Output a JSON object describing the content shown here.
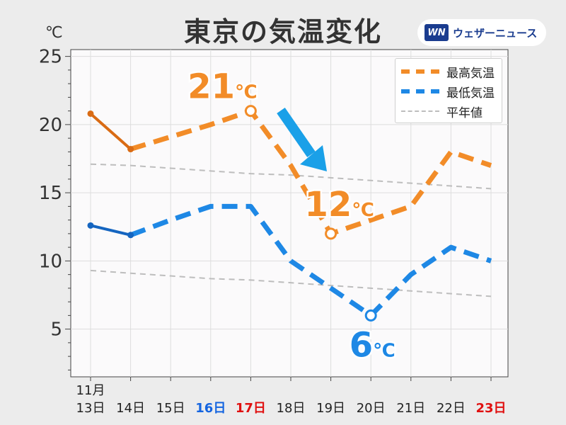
{
  "title": "東京の気温変化",
  "unit": "℃",
  "brand": {
    "logo": "WN",
    "name": "ウェザーニュース"
  },
  "legend": [
    {
      "key": "max",
      "label": "最高気温",
      "color": "#f28c28",
      "style": "dashed-thick"
    },
    {
      "key": "min",
      "label": "最低気温",
      "color": "#1e88e5",
      "style": "dashed-thick"
    },
    {
      "key": "normal",
      "label": "平年値",
      "color": "#bdbdbd",
      "style": "dashed-thin"
    }
  ],
  "chart_data": {
    "type": "line",
    "categories": [
      "13日",
      "14日",
      "15日",
      "16日",
      "17日",
      "18日",
      "19日",
      "20日",
      "21日",
      "22日",
      "23日"
    ],
    "month_label": "11月",
    "category_colors": [
      "#222",
      "#222",
      "#222",
      "#1565e0",
      "#e01010",
      "#222",
      "#222",
      "#222",
      "#222",
      "#222",
      "#e01010"
    ],
    "category_bold": [
      false,
      false,
      false,
      true,
      true,
      false,
      false,
      false,
      false,
      false,
      true
    ],
    "yticks": [
      5,
      10,
      15,
      20,
      25
    ],
    "ylim": [
      1.5,
      25.5
    ],
    "grid": true,
    "series": [
      {
        "name": "最高気温",
        "key": "max",
        "color": "#f28c28",
        "observed_color": "#d96b14",
        "values": [
          20.8,
          18.2,
          19.1,
          20.0,
          21.0,
          17.0,
          12.0,
          13.0,
          14.0,
          18.0,
          17.0
        ],
        "observed_count": 2
      },
      {
        "name": "最低気温",
        "key": "min",
        "color": "#1e88e5",
        "observed_color": "#1565c0",
        "values": [
          12.6,
          11.9,
          13.0,
          14.0,
          14.0,
          10.0,
          8.0,
          6.0,
          9.0,
          11.0,
          10.0
        ],
        "observed_count": 2
      },
      {
        "name": "平年値",
        "key": "normal_max",
        "color": "#bdbdbd",
        "values": [
          17.1,
          17.0,
          16.8,
          16.6,
          16.4,
          16.3,
          16.1,
          15.9,
          15.7,
          15.5,
          15.3
        ]
      },
      {
        "name": "平年値",
        "key": "normal_min",
        "color": "#bdbdbd",
        "values": [
          9.3,
          9.1,
          8.9,
          8.7,
          8.6,
          8.4,
          8.2,
          8.0,
          7.8,
          7.6,
          7.4
        ]
      }
    ],
    "annotations": [
      {
        "series": "max",
        "index": 4,
        "text": "21",
        "unit": "℃",
        "color": "#f28c28"
      },
      {
        "series": "max",
        "index": 6,
        "text": "12",
        "unit": "℃",
        "color": "#f28c28"
      },
      {
        "series": "min",
        "index": 7,
        "text": "6",
        "unit": "℃",
        "color": "#1e88e5"
      }
    ],
    "arrow_color": "#1aa0e8"
  }
}
